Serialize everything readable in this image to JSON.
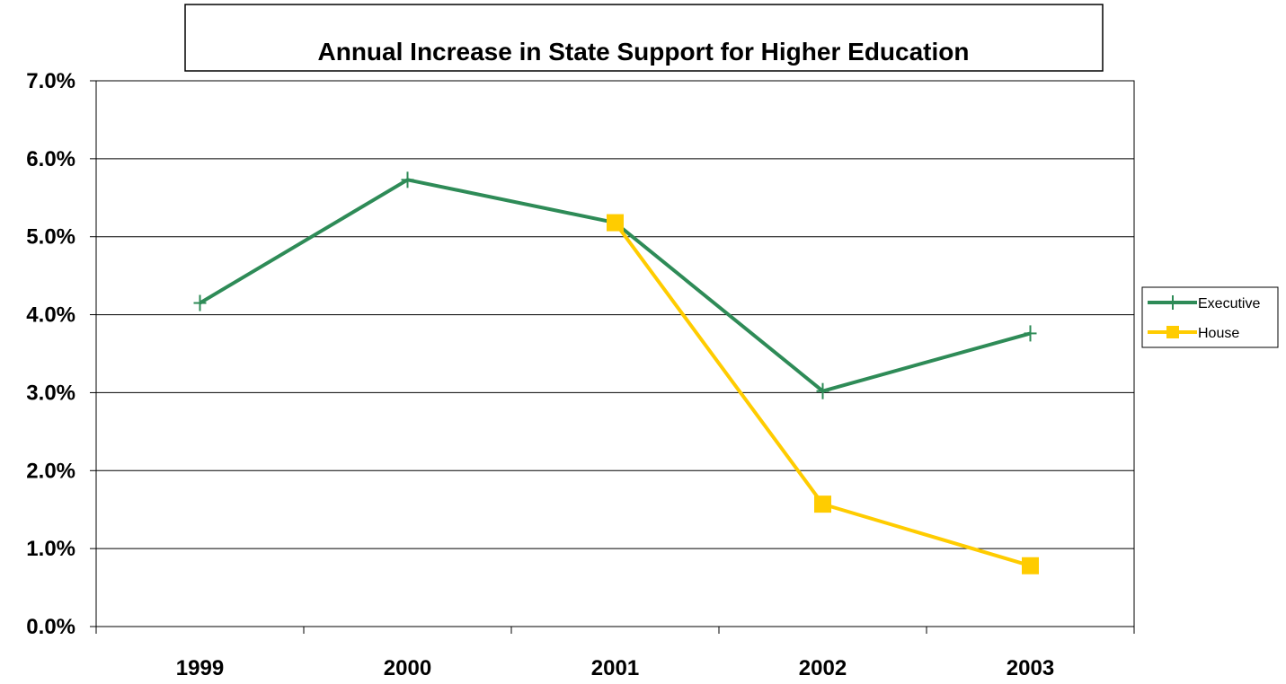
{
  "chart_data": {
    "type": "line",
    "title": "Annual Increase in State Support for Higher Education",
    "xlabel": "",
    "ylabel": "",
    "categories": [
      "1999",
      "2000",
      "2001",
      "2002",
      "2003"
    ],
    "y_ticks": [
      "0.0%",
      "1.0%",
      "2.0%",
      "3.0%",
      "4.0%",
      "5.0%",
      "6.0%",
      "7.0%"
    ],
    "ylim": [
      0,
      7
    ],
    "grid": true,
    "legend_position": "right",
    "series": [
      {
        "name": "Executive",
        "color": "#2E8B57",
        "marker": "plus",
        "values": [
          4.15,
          5.73,
          5.18,
          3.02,
          3.76
        ]
      },
      {
        "name": "House",
        "color": "#FFCC00",
        "marker": "square",
        "values": [
          null,
          null,
          5.18,
          1.57,
          0.78
        ]
      }
    ]
  }
}
